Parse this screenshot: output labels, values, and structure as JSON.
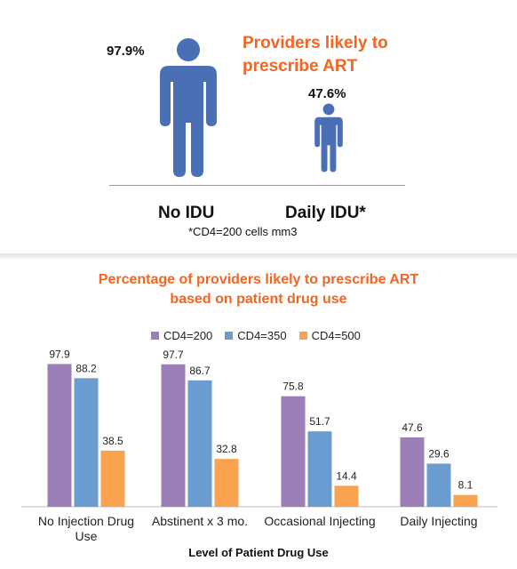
{
  "infographic": {
    "title_line1": "Providers likely to",
    "title_line2": "prescribe ART",
    "figures": [
      {
        "label": "No IDU",
        "value_label": "97.9%",
        "value": 97.9,
        "icon": "person-icon"
      },
      {
        "label": "Daily IDU*",
        "value_label": "47.6%",
        "value": 47.6,
        "icon": "person-icon"
      }
    ],
    "footnote": "*CD4=200 cells mm3",
    "colors": {
      "icon": "#4a6fb5",
      "title": "#f26522"
    }
  },
  "chart_data": {
    "type": "bar",
    "title": "Percentage of providers likely to prescribe ART",
    "subtitle": "based on patient drug use",
    "xlabel": "Level of Patient Drug Use",
    "ylabel": "",
    "categories": [
      [
        "No Injection Drug",
        "Use"
      ],
      [
        "Abstinent x 3 mo."
      ],
      [
        "Occasional Injecting"
      ],
      [
        "Daily Injecting"
      ]
    ],
    "series": [
      {
        "name": "CD4=200",
        "color": "#9b7fb6",
        "values": [
          97.9,
          97.7,
          75.8,
          47.6
        ]
      },
      {
        "name": "CD4=350",
        "color": "#6a9bd1",
        "values": [
          88.2,
          86.7,
          51.7,
          29.6
        ]
      },
      {
        "name": "CD4=500",
        "color": "#f9a24f",
        "values": [
          38.5,
          32.8,
          14.4,
          8.1
        ]
      }
    ],
    "ylim": [
      0,
      100
    ],
    "grid": false,
    "legend_position": "top"
  }
}
